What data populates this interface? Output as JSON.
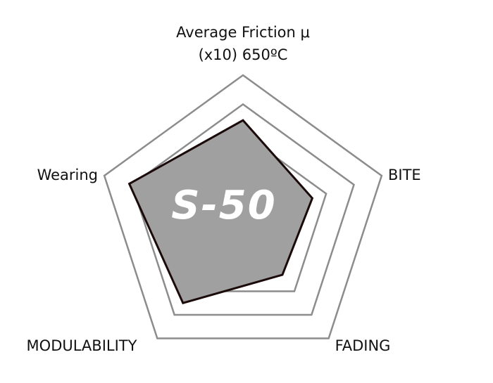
{
  "chart_data": {
    "type": "radar",
    "title": "",
    "axes": [
      {
        "label_lines": [
          "Average Friction μ",
          "(x10) 650ºC"
        ]
      },
      {
        "label_lines": [
          "BITE"
        ]
      },
      {
        "label_lines": [
          "FADING"
        ]
      },
      {
        "label_lines": [
          "MODULABILITY"
        ]
      },
      {
        "label_lines": [
          "Wearing"
        ]
      }
    ],
    "range": [
      0,
      10
    ],
    "grid_levels": [
      6,
      8,
      10
    ],
    "series": [
      {
        "values": [
          6.9,
          5.0,
          4.6,
          7.0,
          8.2
        ],
        "fill": "#a0a0a0",
        "stroke": "#1a0a0a"
      }
    ],
    "grid_color": "#8c8c8c",
    "logo_text": "S-50"
  }
}
